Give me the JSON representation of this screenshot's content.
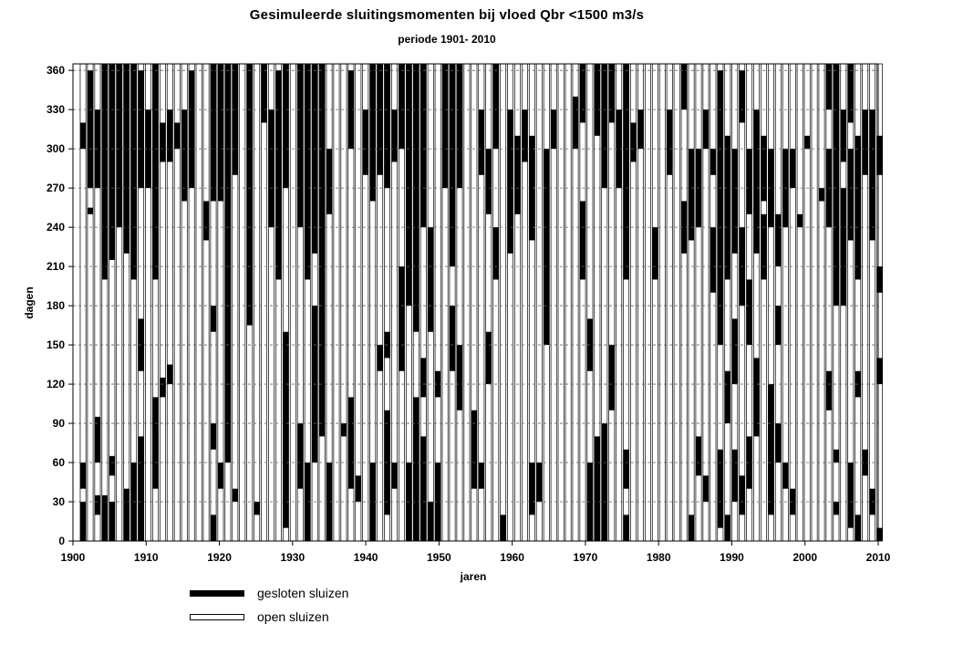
{
  "chart_data": {
    "type": "heatmap",
    "title": "Gesimuleerde sluitingsmomenten bij vloed Qbr <1500 m3/s",
    "subtitle": "periode 1901- 2010",
    "xlabel": "jaren",
    "ylabel": "dagen",
    "xlim": [
      1900,
      2010
    ],
    "ylim": [
      0,
      365
    ],
    "x_ticks": [
      "1900",
      "1910",
      "1920",
      "1930",
      "1940",
      "1950",
      "1960",
      "1970",
      "1980",
      "1990",
      "2000",
      "2010"
    ],
    "y_ticks": [
      "0",
      "30",
      "60",
      "90",
      "120",
      "150",
      "180",
      "210",
      "240",
      "270",
      "300",
      "330",
      "360"
    ],
    "grid": "horizontal dashed lines at y ticks",
    "legend": [
      {
        "label": "gesloten sluizen",
        "color": "#000000"
      },
      {
        "label": "open sluizen",
        "color": "#ffffff"
      }
    ],
    "closed_intervals": [
      {
        "year": 1901,
        "days": [
          [
            0,
            30
          ],
          [
            40,
            60
          ],
          [
            300,
            320
          ]
        ]
      },
      {
        "year": 1902,
        "days": [
          [
            250,
            255
          ],
          [
            270,
            360
          ]
        ]
      },
      {
        "year": 1903,
        "days": [
          [
            20,
            35
          ],
          [
            60,
            95
          ],
          [
            270,
            330
          ]
        ]
      },
      {
        "year": 1904,
        "days": [
          [
            0,
            35
          ],
          [
            200,
            365
          ]
        ]
      },
      {
        "year": 1905,
        "days": [
          [
            0,
            30
          ],
          [
            50,
            65
          ],
          [
            215,
            365
          ]
        ]
      },
      {
        "year": 1906,
        "days": [
          [
            240,
            365
          ]
        ]
      },
      {
        "year": 1907,
        "days": [
          [
            0,
            40
          ],
          [
            220,
            365
          ]
        ]
      },
      {
        "year": 1908,
        "days": [
          [
            0,
            60
          ],
          [
            200,
            365
          ]
        ]
      },
      {
        "year": 1909,
        "days": [
          [
            0,
            80
          ],
          [
            130,
            170
          ],
          [
            270,
            360
          ]
        ]
      },
      {
        "year": 1910,
        "days": [
          [
            270,
            330
          ]
        ]
      },
      {
        "year": 1911,
        "days": [
          [
            40,
            110
          ],
          [
            200,
            365
          ]
        ]
      },
      {
        "year": 1912,
        "days": [
          [
            110,
            125
          ],
          [
            290,
            320
          ]
        ]
      },
      {
        "year": 1913,
        "days": [
          [
            120,
            135
          ],
          [
            290,
            330
          ]
        ]
      },
      {
        "year": 1914,
        "days": [
          [
            300,
            320
          ]
        ]
      },
      {
        "year": 1915,
        "days": [
          [
            260,
            330
          ]
        ]
      },
      {
        "year": 1916,
        "days": [
          [
            270,
            360
          ]
        ]
      },
      {
        "year": 1918,
        "days": [
          [
            230,
            260
          ]
        ]
      },
      {
        "year": 1919,
        "days": [
          [
            160,
            180
          ],
          [
            0,
            20
          ],
          [
            70,
            90
          ],
          [
            260,
            365
          ]
        ]
      },
      {
        "year": 1920,
        "days": [
          [
            40,
            60
          ],
          [
            260,
            365
          ]
        ]
      },
      {
        "year": 1921,
        "days": [
          [
            60,
            365
          ]
        ]
      },
      {
        "year": 1922,
        "days": [
          [
            30,
            40
          ],
          [
            280,
            365
          ]
        ]
      },
      {
        "year": 1924,
        "days": [
          [
            165,
            365
          ]
        ]
      },
      {
        "year": 1925,
        "days": [
          [
            20,
            30
          ]
        ]
      },
      {
        "year": 1926,
        "days": [
          [
            320,
            365
          ]
        ]
      },
      {
        "year": 1927,
        "days": [
          [
            240,
            330
          ]
        ]
      },
      {
        "year": 1928,
        "days": [
          [
            200,
            360
          ]
        ]
      },
      {
        "year": 1929,
        "days": [
          [
            10,
            160
          ],
          [
            270,
            365
          ]
        ]
      },
      {
        "year": 1931,
        "days": [
          [
            40,
            90
          ],
          [
            240,
            365
          ]
        ]
      },
      {
        "year": 1932,
        "days": [
          [
            0,
            60
          ],
          [
            200,
            365
          ]
        ]
      },
      {
        "year": 1933,
        "days": [
          [
            60,
            180
          ],
          [
            220,
            365
          ]
        ]
      },
      {
        "year": 1934,
        "days": [
          [
            80,
            365
          ]
        ]
      },
      {
        "year": 1935,
        "days": [
          [
            0,
            60
          ],
          [
            250,
            300
          ]
        ]
      },
      {
        "year": 1937,
        "days": [
          [
            80,
            90
          ]
        ]
      },
      {
        "year": 1938,
        "days": [
          [
            40,
            110
          ],
          [
            300,
            360
          ]
        ]
      },
      {
        "year": 1939,
        "days": [
          [
            30,
            50
          ]
        ]
      },
      {
        "year": 1940,
        "days": [
          [
            280,
            330
          ]
        ]
      },
      {
        "year": 1941,
        "days": [
          [
            0,
            60
          ],
          [
            260,
            365
          ]
        ]
      },
      {
        "year": 1942,
        "days": [
          [
            130,
            150
          ],
          [
            280,
            365
          ]
        ]
      },
      {
        "year": 1943,
        "days": [
          [
            20,
            100
          ],
          [
            140,
            160
          ],
          [
            270,
            365
          ]
        ]
      },
      {
        "year": 1944,
        "days": [
          [
            40,
            60
          ],
          [
            290,
            330
          ]
        ]
      },
      {
        "year": 1945,
        "days": [
          [
            130,
            210
          ],
          [
            300,
            365
          ]
        ]
      },
      {
        "year": 1946,
        "days": [
          [
            0,
            60
          ],
          [
            180,
            365
          ]
        ]
      },
      {
        "year": 1947,
        "days": [
          [
            0,
            110
          ],
          [
            160,
            365
          ]
        ]
      },
      {
        "year": 1948,
        "days": [
          [
            0,
            80
          ],
          [
            110,
            140
          ],
          [
            240,
            365
          ]
        ]
      },
      {
        "year": 1949,
        "days": [
          [
            0,
            30
          ],
          [
            160,
            240
          ]
        ]
      },
      {
        "year": 1950,
        "days": [
          [
            0,
            60
          ],
          [
            110,
            130
          ]
        ]
      },
      {
        "year": 1951,
        "days": [
          [
            270,
            365
          ]
        ]
      },
      {
        "year": 1952,
        "days": [
          [
            130,
            180
          ],
          [
            210,
            365
          ]
        ]
      },
      {
        "year": 1953,
        "days": [
          [
            100,
            150
          ],
          [
            270,
            365
          ]
        ]
      },
      {
        "year": 1955,
        "days": [
          [
            40,
            100
          ]
        ]
      },
      {
        "year": 1956,
        "days": [
          [
            40,
            60
          ],
          [
            280,
            330
          ]
        ]
      },
      {
        "year": 1957,
        "days": [
          [
            120,
            160
          ],
          [
            250,
            300
          ]
        ]
      },
      {
        "year": 1958,
        "days": [
          [
            200,
            240
          ],
          [
            300,
            365
          ]
        ]
      },
      {
        "year": 1959,
        "days": [
          [
            0,
            20
          ]
        ]
      },
      {
        "year": 1960,
        "days": [
          [
            220,
            330
          ]
        ]
      },
      {
        "year": 1961,
        "days": [
          [
            250,
            310
          ]
        ]
      },
      {
        "year": 1962,
        "days": [
          [
            290,
            330
          ]
        ]
      },
      {
        "year": 1963,
        "days": [
          [
            20,
            60
          ],
          [
            230,
            310
          ]
        ]
      },
      {
        "year": 1964,
        "days": [
          [
            30,
            60
          ]
        ]
      },
      {
        "year": 1965,
        "days": [
          [
            150,
            300
          ]
        ]
      },
      {
        "year": 1966,
        "days": [
          [
            300,
            330
          ]
        ]
      },
      {
        "year": 1969,
        "days": [
          [
            300,
            340
          ]
        ]
      },
      {
        "year": 1970,
        "days": [
          [
            200,
            260
          ],
          [
            320,
            365
          ]
        ]
      },
      {
        "year": 1971,
        "days": [
          [
            0,
            60
          ],
          [
            130,
            170
          ]
        ]
      },
      {
        "year": 1972,
        "days": [
          [
            0,
            80
          ],
          [
            310,
            365
          ]
        ]
      },
      {
        "year": 1973,
        "days": [
          [
            0,
            90
          ],
          [
            270,
            365
          ]
        ]
      },
      {
        "year": 1974,
        "days": [
          [
            100,
            150
          ],
          [
            320,
            365
          ]
        ]
      },
      {
        "year": 1975,
        "days": [
          [
            270,
            330
          ]
        ]
      },
      {
        "year": 1976,
        "days": [
          [
            0,
            20
          ],
          [
            40,
            70
          ],
          [
            200,
            365
          ]
        ]
      },
      {
        "year": 1977,
        "days": [
          [
            290,
            320
          ]
        ]
      },
      {
        "year": 1978,
        "days": [
          [
            300,
            330
          ]
        ]
      },
      {
        "year": 1980,
        "days": [
          [
            200,
            240
          ]
        ]
      },
      {
        "year": 1982,
        "days": [
          [
            280,
            330
          ]
        ]
      },
      {
        "year": 1984,
        "days": [
          [
            220,
            260
          ],
          [
            330,
            365
          ]
        ]
      },
      {
        "year": 1985,
        "days": [
          [
            0,
            20
          ],
          [
            230,
            300
          ]
        ]
      },
      {
        "year": 1986,
        "days": [
          [
            50,
            80
          ],
          [
            240,
            300
          ]
        ]
      },
      {
        "year": 1987,
        "days": [
          [
            30,
            50
          ],
          [
            300,
            330
          ]
        ]
      },
      {
        "year": 1988,
        "days": [
          [
            190,
            240
          ],
          [
            280,
            300
          ]
        ]
      },
      {
        "year": 1989,
        "days": [
          [
            10,
            70
          ],
          [
            150,
            360
          ]
        ]
      },
      {
        "year": 1990,
        "days": [
          [
            0,
            20
          ],
          [
            90,
            130
          ],
          [
            200,
            310
          ]
        ]
      },
      {
        "year": 1991,
        "days": [
          [
            30,
            70
          ],
          [
            120,
            170
          ],
          [
            220,
            300
          ]
        ]
      },
      {
        "year": 1992,
        "days": [
          [
            20,
            50
          ],
          [
            180,
            240
          ],
          [
            320,
            360
          ]
        ]
      },
      {
        "year": 1993,
        "days": [
          [
            40,
            80
          ],
          [
            150,
            200
          ],
          [
            250,
            300
          ]
        ]
      },
      {
        "year": 1994,
        "days": [
          [
            80,
            140
          ],
          [
            220,
            330
          ]
        ]
      },
      {
        "year": 1995,
        "days": [
          [
            200,
            250
          ],
          [
            260,
            310
          ]
        ]
      },
      {
        "year": 1996,
        "days": [
          [
            20,
            120
          ],
          [
            240,
            300
          ]
        ]
      },
      {
        "year": 1997,
        "days": [
          [
            60,
            90
          ],
          [
            150,
            180
          ],
          [
            210,
            250
          ]
        ]
      },
      {
        "year": 1998,
        "days": [
          [
            40,
            60
          ],
          [
            240,
            300
          ]
        ]
      },
      {
        "year": 1999,
        "days": [
          [
            20,
            40
          ],
          [
            270,
            300
          ]
        ]
      },
      {
        "year": 2000,
        "days": [
          [
            240,
            250
          ]
        ]
      },
      {
        "year": 2001,
        "days": [
          [
            300,
            310
          ]
        ]
      },
      {
        "year": 2003,
        "days": [
          [
            260,
            270
          ]
        ]
      },
      {
        "year": 2004,
        "days": [
          [
            100,
            130
          ],
          [
            240,
            300
          ],
          [
            330,
            365
          ]
        ]
      },
      {
        "year": 2005,
        "days": [
          [
            20,
            30
          ],
          [
            60,
            70
          ],
          [
            180,
            365
          ]
        ]
      },
      {
        "year": 2006,
        "days": [
          [
            180,
            270
          ],
          [
            290,
            330
          ]
        ]
      },
      {
        "year": 2007,
        "days": [
          [
            10,
            60
          ],
          [
            230,
            300
          ],
          [
            320,
            365
          ]
        ]
      },
      {
        "year": 2008,
        "days": [
          [
            0,
            20
          ],
          [
            110,
            130
          ],
          [
            200,
            310
          ]
        ]
      },
      {
        "year": 2009,
        "days": [
          [
            50,
            70
          ],
          [
            280,
            330
          ]
        ]
      },
      {
        "year": 2010,
        "days": [
          [
            20,
            40
          ],
          [
            230,
            330
          ]
        ]
      },
      {
        "year": 2011,
        "days": [
          [
            0,
            10
          ],
          [
            120,
            140
          ],
          [
            190,
            210
          ],
          [
            280,
            310
          ]
        ]
      }
    ]
  }
}
